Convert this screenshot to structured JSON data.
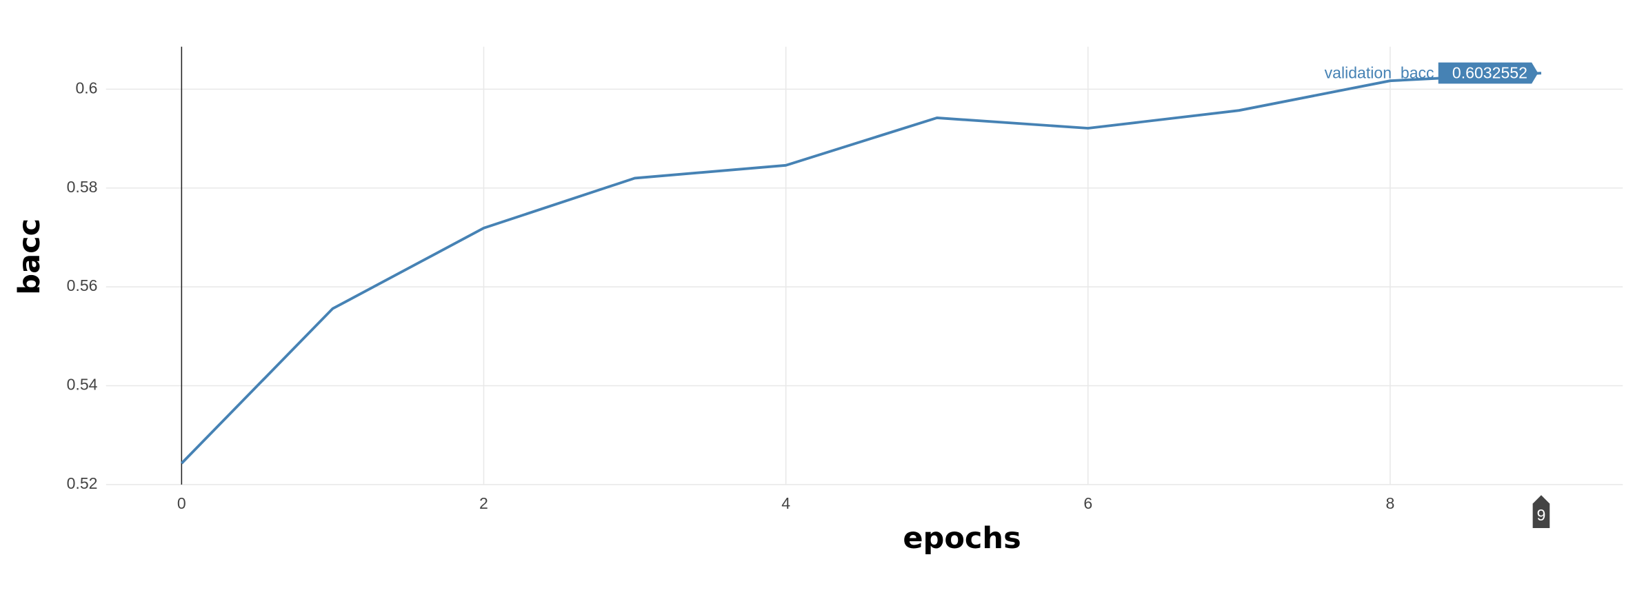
{
  "chart_data": {
    "type": "line",
    "x_label": "epochs",
    "y_label": "bacc",
    "x": [
      0,
      1,
      2,
      3,
      4,
      5,
      6,
      7,
      8,
      9
    ],
    "series": [
      {
        "name": "validation_bacc",
        "color": "#4682b4",
        "values": [
          0.5243,
          0.5556,
          0.5719,
          0.582,
          0.5846,
          0.5942,
          0.5921,
          0.5957,
          0.6017,
          0.6032552
        ]
      }
    ],
    "xlim": [
      -0.5,
      9.54
    ],
    "ylim": [
      0.52,
      0.6086
    ],
    "xticks": [
      0,
      2,
      4,
      6,
      8
    ],
    "yticks": [
      0.52,
      0.54,
      0.56,
      0.58,
      0.6
    ],
    "grid": true,
    "zeroline": true,
    "hover_index": 9
  }
}
